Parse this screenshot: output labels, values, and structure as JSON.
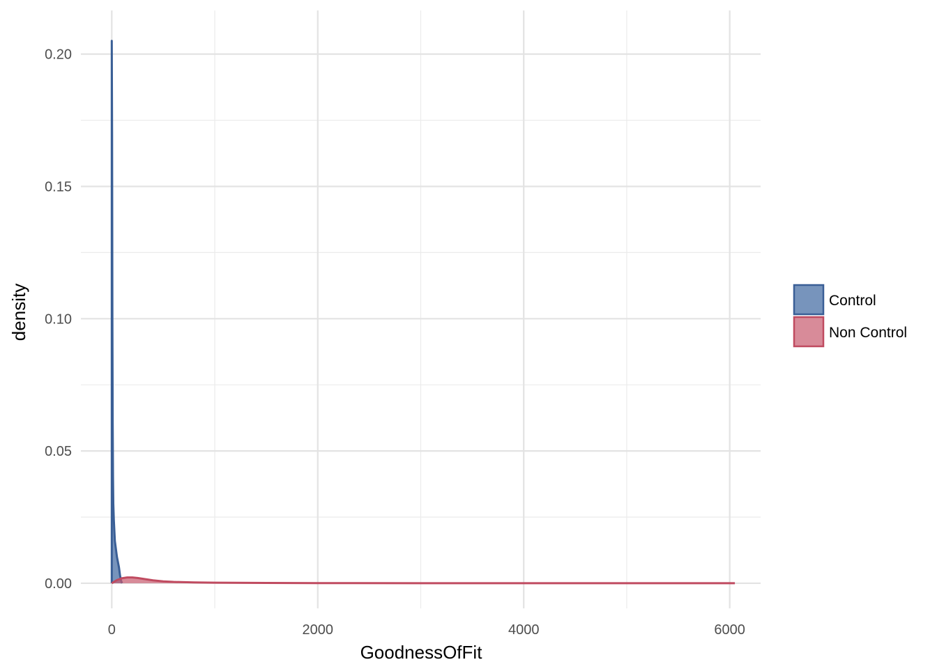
{
  "chart_data": {
    "type": "area",
    "xlabel": "GoodnessOfFit",
    "ylabel": "density",
    "xlim": [
      -300,
      6300
    ],
    "ylim": [
      -0.0095,
      0.2165
    ],
    "x_ticks": [
      0,
      2000,
      4000,
      6000
    ],
    "x_tick_labels": [
      "0",
      "2000",
      "4000",
      "6000"
    ],
    "x_minor_ticks": [
      1000,
      3000,
      5000
    ],
    "y_ticks": [
      0,
      0.05,
      0.1,
      0.15,
      0.2
    ],
    "y_tick_labels": [
      "0.00",
      "0.05",
      "0.10",
      "0.15",
      "0.20"
    ],
    "y_minor_ticks": [
      0.025,
      0.075,
      0.125,
      0.175
    ],
    "grid": true,
    "legend_position": "right",
    "series": [
      {
        "name": "Control",
        "fill": "#4a70a6",
        "stroke": "#3a5f96",
        "fill_opacity": 0.75,
        "x": [
          0,
          3,
          6,
          9,
          12,
          15,
          20,
          25,
          30,
          40,
          50,
          60,
          70,
          80,
          90,
          100
        ],
        "y": [
          0.205,
          0.17,
          0.1,
          0.06,
          0.04,
          0.03,
          0.024,
          0.02,
          0.016,
          0.013,
          0.01,
          0.008,
          0.006,
          0.003,
          0.001,
          0.0
        ]
      },
      {
        "name": "Non Control",
        "fill": "#c85a6e",
        "stroke": "#c04b60",
        "fill_opacity": 0.7,
        "x": [
          0,
          50,
          100,
          150,
          200,
          250,
          300,
          400,
          500,
          600,
          700,
          800,
          1000,
          1500,
          2000,
          3000,
          4000,
          5000,
          6050
        ],
        "y": [
          0.0,
          0.0012,
          0.0019,
          0.0022,
          0.0022,
          0.002,
          0.0017,
          0.0011,
          0.0007,
          0.0005,
          0.0004,
          0.0003,
          0.0002,
          0.0001,
          5e-05,
          2e-05,
          1e-05,
          0.0,
          0.0
        ]
      }
    ]
  }
}
